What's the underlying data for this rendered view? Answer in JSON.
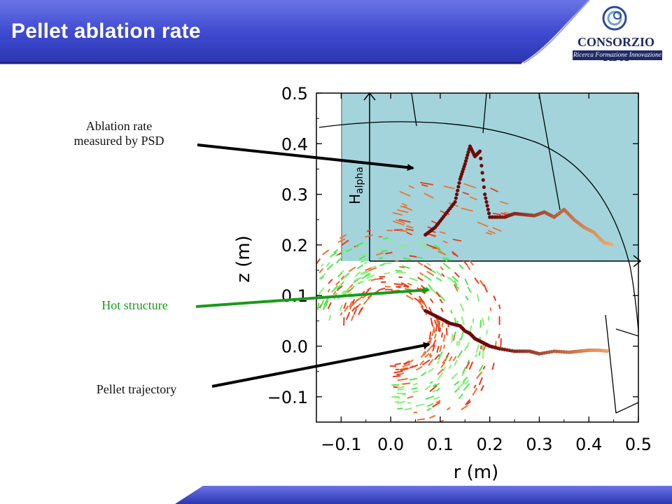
{
  "slide": {
    "title": "Pellet ablation rate"
  },
  "logo": {
    "name": "CONSORZIO RFX",
    "subtitle": "Ricerca Formazione Innovazione"
  },
  "annotations": [
    {
      "id": "ablation",
      "lines": [
        "Ablation rate",
        "measured by PSD"
      ],
      "color": "#111111"
    },
    {
      "id": "hot",
      "lines": [
        "Hot structure"
      ],
      "color": "#1a9a1a"
    },
    {
      "id": "traj",
      "lines": [
        "Pellet trajectory"
      ],
      "color": "#111111"
    }
  ],
  "colors": {
    "header": "#3f4bd1",
    "inset_bg": "#a3d4dc",
    "ablation_trace": "#8b1a1a",
    "hot_structure": "#4ee84e",
    "arrow_green": "#1a9a1a"
  },
  "chart_data": {
    "type": "scatter",
    "xlabel": "r (m)",
    "ylabel": "z (m)",
    "xlim": [
      -0.15,
      0.5
    ],
    "ylim": [
      -0.15,
      0.5
    ],
    "x_ticks": [
      "−0.1",
      "0.0",
      "0.1",
      "0.2",
      "0.3",
      "0.4",
      "0.5"
    ],
    "y_ticks": [
      "0.5",
      "0.4",
      "0.3",
      "0.2",
      "0.1",
      "0.0",
      "−0.1"
    ],
    "inset": {
      "label": "H",
      "label_sub": "alpha"
    },
    "series": [
      {
        "points": [
          [
            0.07,
            0.07
          ],
          [
            0.09,
            0.06
          ],
          [
            0.1,
            0.055
          ],
          [
            0.12,
            0.045
          ],
          [
            0.14,
            0.04
          ],
          [
            0.15,
            0.03
          ],
          [
            0.16,
            0.025
          ],
          [
            0.17,
            0.015
          ],
          [
            0.18,
            0.01
          ],
          [
            0.19,
            0.005
          ],
          [
            0.2,
            0.0
          ],
          [
            0.22,
            -0.005
          ],
          [
            0.25,
            -0.01
          ],
          [
            0.28,
            -0.01
          ],
          [
            0.3,
            -0.015
          ],
          [
            0.33,
            -0.01
          ],
          [
            0.36,
            -0.012
          ],
          [
            0.38,
            -0.01
          ],
          [
            0.4,
            -0.008
          ],
          [
            0.42,
            -0.008
          ],
          [
            0.44,
            -0.01
          ]
        ]
      },
      {
        "points": [
          [
            0.07,
            0.22
          ],
          [
            0.09,
            0.235
          ],
          [
            0.11,
            0.26
          ],
          [
            0.13,
            0.285
          ],
          [
            0.14,
            0.33
          ],
          [
            0.15,
            0.36
          ],
          [
            0.16,
            0.395
          ],
          [
            0.17,
            0.375
          ],
          [
            0.18,
            0.385
          ],
          [
            0.19,
            0.3
          ],
          [
            0.2,
            0.255
          ],
          [
            0.23,
            0.255
          ],
          [
            0.25,
            0.262
          ],
          [
            0.27,
            0.26
          ],
          [
            0.29,
            0.258
          ],
          [
            0.31,
            0.265
          ],
          [
            0.33,
            0.255
          ],
          [
            0.35,
            0.27
          ],
          [
            0.37,
            0.25
          ],
          [
            0.39,
            0.235
          ],
          [
            0.41,
            0.225
          ],
          [
            0.43,
            0.205
          ],
          [
            0.45,
            0.2
          ]
        ]
      }
    ]
  }
}
